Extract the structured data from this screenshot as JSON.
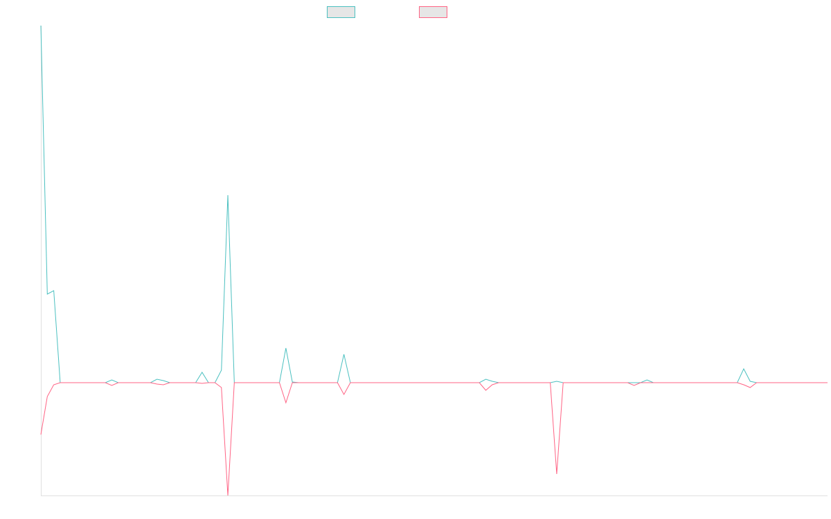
{
  "chart_data": {
    "type": "line",
    "xlim": [
      0,
      122
    ],
    "ylim": [
      -163,
      516
    ],
    "series": [
      {
        "color": "#4bc0c0",
        "values": [
          516,
          128,
          133,
          0,
          0,
          0,
          0,
          0,
          0,
          0,
          0,
          4,
          0,
          0,
          0,
          0,
          0,
          0,
          5,
          3,
          0,
          0,
          0,
          0,
          0,
          15,
          0,
          0,
          18,
          271,
          0,
          0,
          0,
          0,
          0,
          0,
          0,
          0,
          50,
          1,
          0,
          0,
          0,
          0,
          0,
          0,
          0,
          41,
          0,
          0,
          0,
          0,
          0,
          0,
          0,
          0,
          0,
          0,
          0,
          0,
          0,
          0,
          0,
          0,
          0,
          0,
          0,
          0,
          0,
          5,
          2,
          0,
          0,
          0,
          0,
          0,
          0,
          0,
          0,
          0,
          2,
          0,
          0,
          0,
          0,
          0,
          0,
          0,
          0,
          0,
          0,
          0,
          0,
          0,
          4,
          0,
          0,
          0,
          0,
          0,
          0,
          0,
          0,
          0,
          0,
          0,
          0,
          0,
          0,
          20,
          2,
          0,
          0,
          0,
          0,
          0,
          0,
          0,
          0,
          0,
          0,
          0,
          0
        ]
      },
      {
        "color": "#ff6384",
        "values": [
          -75,
          -20,
          -3,
          0,
          0,
          0,
          0,
          0,
          0,
          0,
          0,
          -4,
          0,
          0,
          0,
          0,
          0,
          0,
          -2,
          -3,
          0,
          0,
          0,
          0,
          0,
          -1,
          0,
          0,
          -7,
          -163,
          0,
          0,
          0,
          0,
          0,
          0,
          0,
          0,
          -29,
          0,
          0,
          0,
          0,
          0,
          0,
          0,
          0,
          -17,
          0,
          0,
          0,
          0,
          0,
          0,
          0,
          0,
          0,
          0,
          0,
          0,
          0,
          0,
          0,
          0,
          0,
          0,
          0,
          0,
          0,
          -11,
          -3,
          0,
          0,
          0,
          0,
          0,
          0,
          0,
          0,
          0,
          -132,
          0,
          0,
          0,
          0,
          0,
          0,
          0,
          0,
          0,
          0,
          0,
          -4,
          0,
          0,
          0,
          0,
          0,
          0,
          0,
          0,
          0,
          0,
          0,
          0,
          0,
          0,
          0,
          0,
          -3,
          -7,
          0,
          0,
          0,
          0,
          0,
          0,
          0,
          0,
          0,
          0,
          0,
          0
        ]
      }
    ]
  }
}
